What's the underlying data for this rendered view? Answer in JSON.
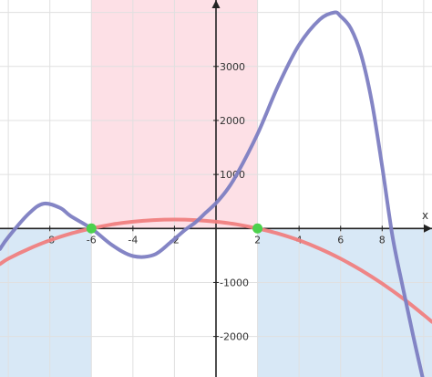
{
  "chart_data": {
    "type": "line",
    "xlabel": "x",
    "ylabel": "",
    "xlim": [
      -10.4,
      10.4
    ],
    "ylim": [
      -2750,
      4230
    ],
    "grid": true,
    "colors": {
      "grid": "#e0e0e0",
      "axis": "#222222",
      "red_region": "#fde0e6",
      "blue_region": "#d8e8f6",
      "points": "#4cd14c"
    },
    "x_ticks": [
      -8,
      -6,
      -4,
      -2,
      2,
      4,
      6,
      8
    ],
    "x_tick_labels": [
      "-8",
      "-6",
      "-4",
      "-2",
      "2",
      "4",
      "6",
      "8"
    ],
    "y_ticks": [
      -2000,
      -1000,
      1000,
      2000,
      3000
    ],
    "y_tick_labels": [
      "-2000",
      "-1000",
      "1000",
      "2000",
      "3000"
    ],
    "regions": [
      {
        "color": "#fde0e6",
        "x_range": [
          -6,
          2
        ],
        "y_range": [
          0,
          4230
        ]
      },
      {
        "color": "#d8e8f6",
        "x_range": [
          -10.4,
          -6
        ],
        "y_range": [
          -2750,
          0
        ]
      },
      {
        "color": "#d8e8f6",
        "x_range": [
          2,
          10.4
        ],
        "y_range": [
          -2750,
          0
        ]
      }
    ],
    "series": [
      {
        "color": "#7d7ec2",
        "x": [
          -10.4,
          -10,
          -9,
          -8.3,
          -7.5,
          -7,
          -6,
          -5,
          -4,
          -3,
          -2.2,
          -1.5,
          -1,
          -0.5,
          0,
          0.5,
          1,
          2,
          3,
          4,
          5,
          5.7,
          6,
          6.5,
          7,
          7.5,
          8,
          8.5,
          9,
          9.5,
          10
        ],
        "y": [
          -380,
          -160,
          280,
          460,
          380,
          230,
          0,
          -310,
          -510,
          -490,
          -260,
          -30,
          110,
          290,
          470,
          700,
          1000,
          1750,
          2650,
          3400,
          3870,
          4000,
          3930,
          3700,
          3200,
          2350,
          1150,
          -150,
          -1100,
          -2000,
          -2850
        ]
      },
      {
        "color": "#f08080",
        "x": [
          -10.4,
          -10,
          -9,
          -8,
          -7,
          -6,
          -5,
          -4,
          -3,
          -2,
          -1,
          0,
          1,
          2,
          3,
          4,
          5,
          6,
          7,
          8,
          9,
          10,
          10.4
        ],
        "y": [
          -660,
          -560,
          -375,
          -220,
          -95,
          0,
          75,
          125,
          155,
          165,
          155,
          125,
          75,
          0,
          -95,
          -220,
          -375,
          -560,
          -775,
          -1020,
          -1295,
          -1600,
          -1730
        ]
      }
    ],
    "points": [
      {
        "x": -6,
        "y": 0
      },
      {
        "x": 2,
        "y": 0
      }
    ]
  }
}
